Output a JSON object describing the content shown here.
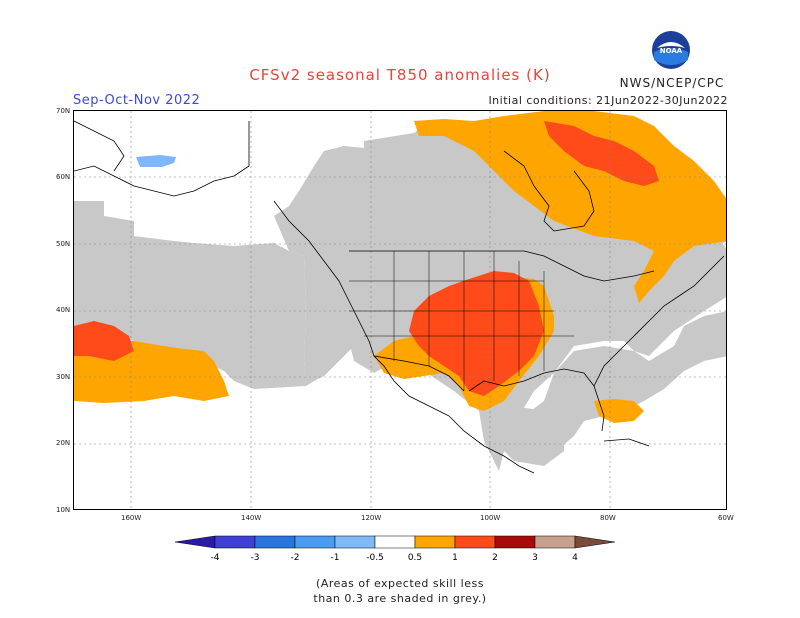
{
  "header": {
    "title": "CFSv2 seasonal T850 anomalies (K)",
    "season": "Sep-Oct-Nov 2022",
    "initial_conditions": "Initial conditions: 21Jun2022-30Jun2022",
    "agency": "NWS/NCEP/CPC",
    "logo_text": "NOAA"
  },
  "map": {
    "lat_labels": [
      "70N",
      "60N",
      "50N",
      "40N",
      "30N",
      "20N",
      "10N"
    ],
    "lon_labels": [
      "160W",
      "140W",
      "120W",
      "100W",
      "80W",
      "60W"
    ],
    "colors": {
      "land_outline": "#000000",
      "grey_shade": "#c8c8c8",
      "anom_0_5_1": "#ffa500",
      "anom_1_2": "#ff4a1a",
      "anom_neg_0_5_neg_1": "#7fb6ff"
    }
  },
  "colorbar": {
    "labels": [
      "-4",
      "-3",
      "-2",
      "-1",
      "-0.5",
      "0.5",
      "1",
      "2",
      "3",
      "4"
    ],
    "colors": [
      "#2a1aa8",
      "#3f3fd6",
      "#2a74e0",
      "#4a9cf2",
      "#7fbaf5",
      "#ffffff",
      "#ffa500",
      "#ff4a1a",
      "#a80a0a",
      "#c8a090",
      "#7a4a3a"
    ]
  },
  "footnote": {
    "line1": "(Areas of expected skill less",
    "line2": "than 0.3 are shaded in grey.)"
  }
}
